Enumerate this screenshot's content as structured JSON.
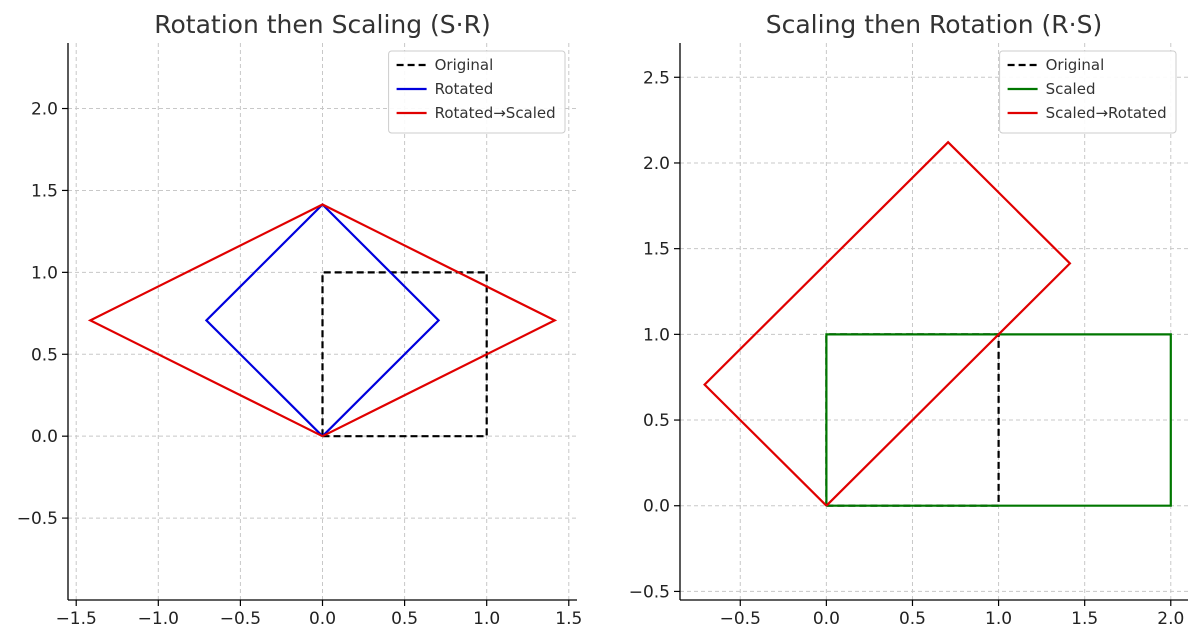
{
  "chart_data": [
    {
      "type": "line",
      "title": "Rotation then Scaling (S·R)",
      "xlabel": "",
      "ylabel": "",
      "xlim": [
        -1.55,
        1.55
      ],
      "ylim": [
        -1.0,
        2.4
      ],
      "xticks": [
        -1.5,
        -1.0,
        -0.5,
        0.0,
        0.5,
        1.0,
        1.5
      ],
      "xtick_labels": [
        "−1.5",
        "−1.0",
        "−0.5",
        "0.0",
        "0.5",
        "1.0",
        "1.5"
      ],
      "yticks": [
        -0.5,
        0.0,
        0.5,
        1.0,
        1.5,
        2.0
      ],
      "ytick_labels": [
        "−0.5",
        "0.0",
        "0.5",
        "1.0",
        "1.5",
        "2.0"
      ],
      "grid": true,
      "legend_position": "top-right",
      "series": [
        {
          "name": "Original",
          "color": "#000000",
          "style": "dashed",
          "x": [
            0,
            1,
            1,
            0,
            0
          ],
          "y": [
            0,
            0,
            1,
            1,
            0
          ]
        },
        {
          "name": "Rotated",
          "color": "#0000dd",
          "style": "solid",
          "x": [
            0,
            0.707,
            0,
            -0.707,
            0
          ],
          "y": [
            0,
            0.707,
            1.414,
            0.707,
            0
          ]
        },
        {
          "name": "Rotated→Scaled",
          "color": "#e00000",
          "style": "solid",
          "x": [
            0,
            1.414,
            0,
            -1.414,
            0
          ],
          "y": [
            0,
            0.707,
            1.414,
            0.707,
            0
          ]
        }
      ]
    },
    {
      "type": "line",
      "title": "Scaling then Rotation (R·S)",
      "xlabel": "",
      "ylabel": "",
      "xlim": [
        -0.85,
        2.1
      ],
      "ylim": [
        -0.55,
        2.7
      ],
      "xticks": [
        -0.5,
        0.0,
        0.5,
        1.0,
        1.5,
        2.0
      ],
      "xtick_labels": [
        "−0.5",
        "0.0",
        "0.5",
        "1.0",
        "1.5",
        "2.0"
      ],
      "yticks": [
        -0.5,
        0.0,
        0.5,
        1.0,
        1.5,
        2.0,
        2.5
      ],
      "ytick_labels": [
        "−0.5",
        "0.0",
        "0.5",
        "1.0",
        "1.5",
        "2.0",
        "2.5"
      ],
      "grid": true,
      "legend_position": "top-right",
      "series": [
        {
          "name": "Original",
          "color": "#000000",
          "style": "dashed",
          "x": [
            0,
            1,
            1,
            0,
            0
          ],
          "y": [
            0,
            0,
            1,
            1,
            0
          ]
        },
        {
          "name": "Scaled",
          "color": "#007700",
          "style": "solid",
          "x": [
            0,
            2,
            2,
            0,
            0
          ],
          "y": [
            0,
            0,
            1,
            1,
            0
          ]
        },
        {
          "name": "Scaled→Rotated",
          "color": "#e00000",
          "style": "solid",
          "x": [
            0,
            1.414,
            0.707,
            -0.707,
            0
          ],
          "y": [
            0,
            1.414,
            2.121,
            0.707,
            0
          ]
        }
      ]
    }
  ]
}
